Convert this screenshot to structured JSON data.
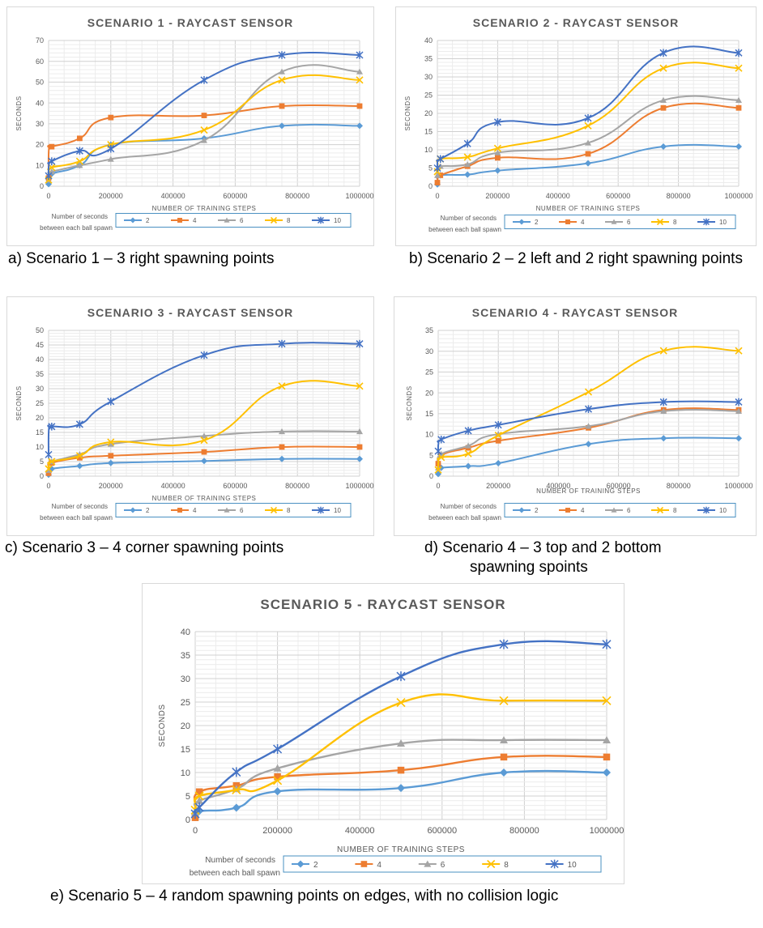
{
  "legend_title_line1": "Number of seconds",
  "legend_title_line2": "between each ball spawn",
  "series_colors": {
    "2": "#5b9bd5",
    "4": "#ed7d31",
    "6": "#a5a5a5",
    "8": "#ffc000",
    "10": "#4472c4"
  },
  "series_markers": {
    "2": "diamond",
    "4": "square",
    "6": "triangle",
    "8": "x",
    "10": "star"
  },
  "chart_data": [
    {
      "type": "line",
      "title": "SCENARIO 1 - RAYCAST SENSOR",
      "xlabel": "NUMBER OF TRAINING STEPS",
      "ylabel": "SECONDS",
      "x": [
        0,
        1000,
        10000,
        100000,
        200000,
        500000,
        750000,
        1000000
      ],
      "xticks": [
        "0",
        "200000",
        "400000",
        "600000",
        "800000",
        "1000000"
      ],
      "ylim": [
        0,
        70
      ],
      "yticks": [
        "0",
        "10",
        "20",
        "30",
        "40",
        "50",
        "60",
        "70"
      ],
      "grid": true,
      "legend_position": "bottom",
      "series": [
        {
          "name": "2",
          "values": [
            1,
            4,
            6,
            10,
            20,
            23,
            29,
            29
          ]
        },
        {
          "name": "4",
          "values": [
            4,
            18,
            19,
            23,
            33,
            34,
            38.5,
            38.5
          ]
        },
        {
          "name": "6",
          "values": [
            3,
            6,
            7,
            10,
            13,
            22,
            55,
            55
          ]
        },
        {
          "name": "8",
          "values": [
            3,
            7,
            9,
            12,
            20,
            27,
            51,
            51
          ]
        },
        {
          "name": "10",
          "values": [
            5,
            10,
            12,
            17,
            18,
            51,
            63,
            63
          ]
        }
      ],
      "caption": "a) Scenario 1 – 3 right spawning points"
    },
    {
      "type": "line",
      "title": "SCENARIO 2 - RAYCAST SENSOR",
      "xlabel": "NUMBER OF TRAINING STEPS",
      "ylabel": "SECONDS",
      "x": [
        0,
        1000,
        10000,
        100000,
        200000,
        500000,
        750000,
        1000000
      ],
      "xticks": [
        "0",
        "200000",
        "400000",
        "600000",
        "800000",
        "1000000"
      ],
      "ylim": [
        0,
        40
      ],
      "yticks": [
        "0",
        "5",
        "10",
        "15",
        "20",
        "25",
        "30",
        "35",
        "40"
      ],
      "grid": true,
      "legend_position": "bottom",
      "series": [
        {
          "name": "2",
          "values": [
            0.5,
            1.5,
            3,
            3.2,
            4.3,
            6.3,
            10.9,
            10.9
          ]
        },
        {
          "name": "4",
          "values": [
            1,
            2,
            3,
            5.5,
            7.8,
            8.9,
            21.5,
            21.5
          ]
        },
        {
          "name": "6",
          "values": [
            3,
            5,
            5.5,
            6,
            9.2,
            11.9,
            23.6,
            23.6
          ]
        },
        {
          "name": "8",
          "values": [
            4,
            6,
            7.5,
            8,
            10.4,
            16.6,
            32.4,
            32.4
          ]
        },
        {
          "name": "10",
          "values": [
            5,
            7,
            7.5,
            11.7,
            17.6,
            18.7,
            36.6,
            36.6
          ]
        }
      ],
      "caption": "b) Scenario 2 – 2 left and 2 right spawning points"
    },
    {
      "type": "line",
      "title": "SCENARIO 3 - RAYCAST SENSOR",
      "xlabel": "NUMBER OF TRAINING STEPS",
      "ylabel": "SECONDS",
      "x": [
        0,
        1000,
        10000,
        100000,
        200000,
        500000,
        750000,
        1000000
      ],
      "xticks": [
        "0",
        "200000",
        "400000",
        "600000",
        "800000",
        "1000000"
      ],
      "ylim": [
        0,
        50
      ],
      "yticks": [
        "0",
        "5",
        "10",
        "15",
        "20",
        "25",
        "30",
        "35",
        "40",
        "45",
        "50"
      ],
      "grid": true,
      "legend_position": "bottom",
      "series": [
        {
          "name": "2",
          "values": [
            0.5,
            1.5,
            2.5,
            3.5,
            4.5,
            5.2,
            5.9,
            5.9
          ]
        },
        {
          "name": "4",
          "values": [
            1,
            3,
            4.5,
            6.3,
            7,
            8.3,
            10,
            10
          ]
        },
        {
          "name": "6",
          "values": [
            2,
            4,
            5,
            7.5,
            11,
            13.8,
            15.3,
            15.3
          ]
        },
        {
          "name": "8",
          "values": [
            2.5,
            4,
            5,
            7,
            11.7,
            12.3,
            30.9,
            30.9
          ]
        },
        {
          "name": "10",
          "values": [
            7.4,
            16.3,
            17,
            17.8,
            25.6,
            41.5,
            45.4,
            45.4
          ]
        }
      ],
      "caption": "c) Scenario 3 – 4 corner spawning points"
    },
    {
      "type": "line",
      "title": "SCENARIO 4 - RAYCAST SENSOR",
      "xlabel": "NUMBER OF TRAINING STEPS",
      "ylabel": "SECONDS",
      "x": [
        0,
        1000,
        10000,
        100000,
        200000,
        500000,
        750000,
        1000000
      ],
      "xticks": [
        "0",
        "200000",
        "400000",
        "600000",
        "800000",
        "1000000"
      ],
      "ylim": [
        0,
        35
      ],
      "yticks": [
        "0",
        "5",
        "10",
        "15",
        "20",
        "25",
        "30",
        "35"
      ],
      "grid": true,
      "legend_position": "bottom",
      "series": [
        {
          "name": "2",
          "values": [
            0.5,
            1.2,
            2,
            2.4,
            3.1,
            7.7,
            9.1,
            9.1
          ]
        },
        {
          "name": "4",
          "values": [
            3,
            2.5,
            5,
            6.8,
            8.5,
            11.6,
            15.9,
            15.9
          ]
        },
        {
          "name": "6",
          "values": [
            2,
            3,
            5.3,
            7.3,
            10.1,
            12.0,
            15.6,
            15.6
          ]
        },
        {
          "name": "8",
          "values": [
            1.5,
            3.5,
            4.5,
            5.4,
            9.8,
            20.2,
            30.1,
            30.1
          ]
        },
        {
          "name": "10",
          "values": [
            6,
            7.8,
            8.8,
            10.9,
            12.3,
            16.1,
            17.8,
            17.8
          ]
        }
      ],
      "caption_line1": "d)  Scenario 4 – 3 top and 2 bottom",
      "caption_line2": "spawning spoints"
    },
    {
      "type": "line",
      "title": "SCENARIO 5 - RAYCAST SENSOR",
      "xlabel": "NUMBER OF TRAINING STEPS",
      "ylabel": "SECONDS",
      "x": [
        0,
        1000,
        10000,
        100000,
        200000,
        500000,
        750000,
        1000000
      ],
      "xticks": [
        "0",
        "200000",
        "400000",
        "600000",
        "800000",
        "1000000"
      ],
      "ylim": [
        0,
        40
      ],
      "yticks": [
        "0",
        "5",
        "10",
        "15",
        "20",
        "25",
        "30",
        "35",
        "40"
      ],
      "grid": true,
      "legend_position": "bottom",
      "series": [
        {
          "name": "2",
          "values": [
            0.5,
            1.2,
            1.8,
            2.5,
            6,
            6.7,
            10,
            10
          ]
        },
        {
          "name": "4",
          "values": [
            0.4,
            2.7,
            5.9,
            7.2,
            9.1,
            10.5,
            13.3,
            13.3
          ]
        },
        {
          "name": "6",
          "values": [
            1.5,
            2.5,
            4,
            6.5,
            10.9,
            16.2,
            16.9,
            16.9
          ]
        },
        {
          "name": "8",
          "values": [
            2,
            3,
            5,
            6.3,
            8.3,
            24.9,
            25.3,
            25.3
          ]
        },
        {
          "name": "10",
          "values": [
            1.2,
            2,
            2.6,
            10.1,
            15,
            30.5,
            37.3,
            37.3
          ]
        }
      ],
      "caption": "e) Scenario 5 – 4 random spawning points on edges, with no collision logic"
    }
  ]
}
